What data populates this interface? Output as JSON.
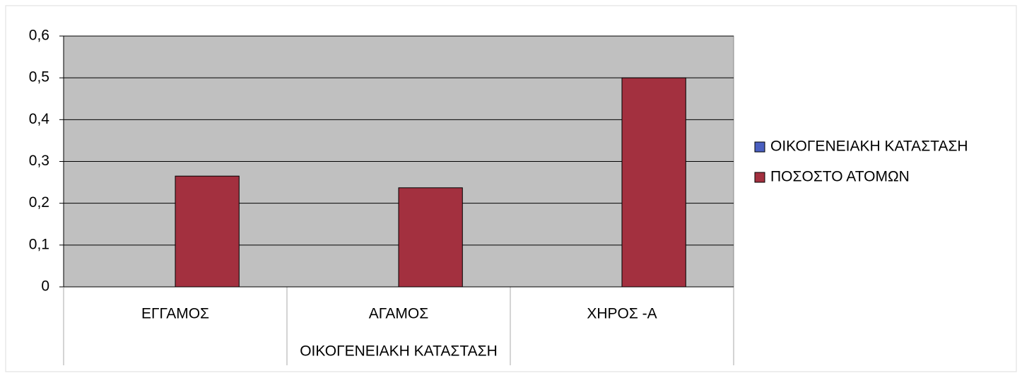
{
  "chart_data": {
    "type": "bar",
    "x_label": "ΟΙΚΟΓΕΝΕΙΑΚΗ ΚΑΤΑΣΤΑΣΗ",
    "categories": [
      "ΕΓΓΑΜΟΣ",
      "ΑΓΑΜΟΣ",
      "ΧΗΡΟΣ -Α"
    ],
    "series": [
      {
        "name": "ΟΙΚΟΓΕΝΕΙΑΚΗ ΚΑΤΑΣΤΑΣΗ",
        "color": "#4a5fc0",
        "values": [
          null,
          null,
          null
        ]
      },
      {
        "name": "ΠΟΣΟΣΤΟ ΑΤΟΜΩΝ",
        "color": "#a3303f",
        "values": [
          0.265,
          0.237,
          0.5
        ]
      }
    ],
    "ylim": [
      0,
      0.6
    ],
    "yticks": [
      0,
      {
        "value": 0.1,
        "label": "0,1"
      },
      {
        "value": 0.2,
        "label": "0,2"
      },
      {
        "value": 0.3,
        "label": "0,3"
      },
      {
        "value": 0.4,
        "label": "0,4"
      },
      {
        "value": 0.5,
        "label": "0,5"
      },
      {
        "value": 0.6,
        "label": "0,6"
      }
    ],
    "grid": true,
    "legend": "right",
    "plot_background": "#c0c0c0"
  }
}
